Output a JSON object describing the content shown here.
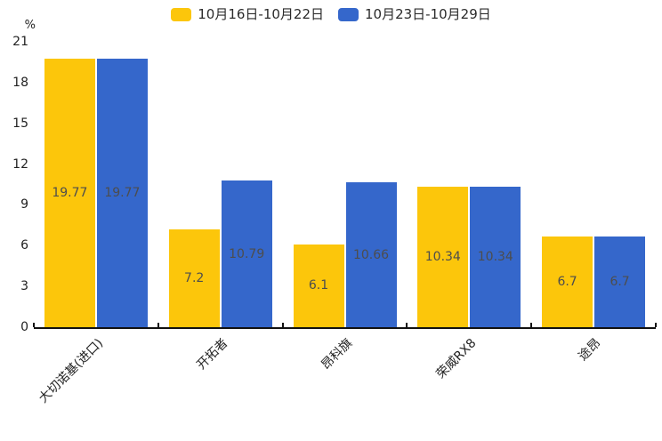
{
  "page": {
    "background": "#ffffff"
  },
  "legend": {
    "items": [
      {
        "label": "10月16日-10月22日",
        "color": "#FCC60B"
      },
      {
        "label": "10月23日-10月29日",
        "color": "#3567CB"
      }
    ]
  },
  "chart_data": {
    "type": "bar",
    "title": "",
    "xlabel": "",
    "ylabel": "%",
    "categories": [
      "大切诺基(进口)",
      "开拓者",
      "昂科旗",
      "荣威RX8",
      "途昂"
    ],
    "series": [
      {
        "name": "10月16日-10月22日",
        "color": "#FCC60B",
        "values": [
          19.77,
          7.2,
          6.1,
          10.34,
          6.7
        ]
      },
      {
        "name": "10月23日-10月29日",
        "color": "#3567CB",
        "values": [
          19.77,
          10.79,
          10.66,
          10.34,
          6.7
        ]
      }
    ],
    "ylim": [
      0,
      21
    ],
    "yticks": [
      0,
      3,
      6,
      9,
      12,
      15,
      18,
      21
    ],
    "grid": false,
    "legend_position": "top",
    "value_labels": "inside-center",
    "xtick_rotation": 45,
    "axis_color": "#111111",
    "value_label_color": "#4d4d4d"
  }
}
